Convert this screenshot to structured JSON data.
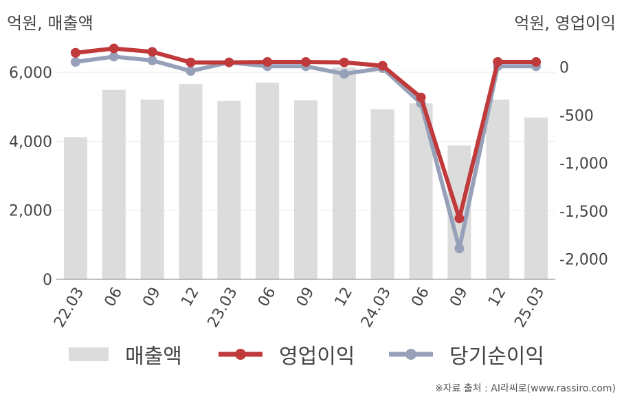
{
  "units": {
    "left": "억원, 매출액",
    "right": "억원, 영업이익"
  },
  "colors": {
    "bar": "#dcdcdc",
    "operating": "#c0393b",
    "net": "#96a1b9",
    "grid": "#e9e9e9",
    "axis": "#aaaaaa"
  },
  "chart_data": {
    "type": "bar",
    "categories": [
      "22.03",
      "06",
      "09",
      "12",
      "23.03",
      "06",
      "09",
      "12",
      "24.03",
      "06",
      "09",
      "12",
      "25.03"
    ],
    "series": [
      {
        "name": "매출액",
        "type": "bar",
        "axis": "left",
        "values": [
          4120,
          5490,
          5210,
          5660,
          5170,
          5700,
          5190,
          6140,
          4930,
          5100,
          3880,
          5210,
          4690
        ]
      },
      {
        "name": "영업이익",
        "type": "line",
        "axis": "right",
        "values": [
          150,
          195,
          160,
          50,
          50,
          55,
          55,
          50,
          15,
          -315,
          -1575,
          55,
          55
        ]
      },
      {
        "name": "당기순이익",
        "type": "line",
        "axis": "right",
        "values": [
          55,
          110,
          70,
          -40,
          50,
          10,
          10,
          -70,
          -10,
          -375,
          -1890,
          10,
          10
        ]
      }
    ],
    "left_axis": {
      "ylim": [
        0,
        6900
      ],
      "ticks": [
        "0",
        "2,000",
        "4,000",
        "6,000"
      ],
      "tick_values": [
        0,
        2000,
        4000,
        6000
      ]
    },
    "right_axis": {
      "ylim": [
        -2210,
        270
      ],
      "ticks": [
        "0",
        "-500",
        "-1,000",
        "-1,500",
        "-2,000"
      ],
      "tick_values": [
        0,
        -500,
        -1000,
        -1500,
        -2000
      ]
    },
    "grid": true,
    "legend": "bottom"
  },
  "legend": {
    "bar": "매출액",
    "operating": "영업이익",
    "net": "당기순이익"
  },
  "footer": "※자료 출처 : AI라씨로(www.rassiro.com)"
}
